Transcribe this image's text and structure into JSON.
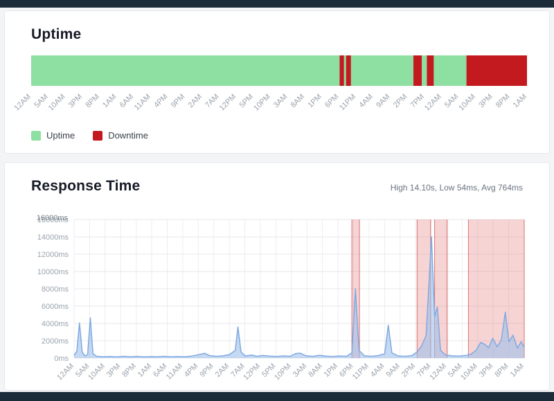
{
  "chrome": {
    "top_bar_color": "#1c2b3a",
    "bottom_bar_color": "#1c2b3a",
    "page_bg": "#f3f4f6"
  },
  "chart_data": [
    {
      "type": "bar",
      "variant": "uptime-status-strip",
      "title": "Uptime",
      "colors": {
        "up": "#8ddfa2",
        "down": "#c21a1f"
      },
      "legend": [
        {
          "label": "Uptime",
          "color": "#8ddfa2"
        },
        {
          "label": "Downtime",
          "color": "#c21a1f"
        }
      ],
      "x_ticks": [
        "12AM",
        "5AM",
        "10AM",
        "3PM",
        "8PM",
        "1AM",
        "6AM",
        "11AM",
        "4PM",
        "9PM",
        "2AM",
        "7AM",
        "12PM",
        "5PM",
        "10PM",
        "3AM",
        "8AM",
        "1PM",
        "6PM",
        "11PM",
        "4AM",
        "9AM",
        "2PM",
        "7PM",
        "12AM",
        "5AM",
        "10AM",
        "3PM",
        "8PM",
        "1AM"
      ],
      "segments": [
        {
          "state": "up",
          "from": 0.0,
          "to": 0.622
        },
        {
          "state": "down",
          "from": 0.622,
          "to": 0.631
        },
        {
          "state": "up",
          "from": 0.631,
          "to": 0.635
        },
        {
          "state": "down",
          "from": 0.635,
          "to": 0.645
        },
        {
          "state": "up",
          "from": 0.645,
          "to": 0.771
        },
        {
          "state": "down",
          "from": 0.771,
          "to": 0.788
        },
        {
          "state": "up",
          "from": 0.788,
          "to": 0.798
        },
        {
          "state": "down",
          "from": 0.798,
          "to": 0.812
        },
        {
          "state": "up",
          "from": 0.812,
          "to": 0.878
        },
        {
          "state": "down",
          "from": 0.878,
          "to": 1.0
        }
      ]
    },
    {
      "type": "area",
      "title": "Response Time",
      "subtitle": "High 14.10s, Low 54ms, Avg 764ms",
      "x_ticks": [
        "12AM",
        "5AM",
        "10AM",
        "3PM",
        "8PM",
        "1AM",
        "6AM",
        "11AM",
        "4PM",
        "9PM",
        "2AM",
        "7AM",
        "12PM",
        "5PM",
        "10PM",
        "3AM",
        "8AM",
        "1PM",
        "6PM",
        "11PM",
        "4AM",
        "9AM",
        "2PM",
        "7PM",
        "12AM",
        "5AM",
        "10AM",
        "3PM",
        "8PM",
        "1AM"
      ],
      "y_ticks": [
        "0ms",
        "2000ms",
        "4000ms",
        "6000ms",
        "8000ms",
        "10000ms",
        "12000ms",
        "14000ms",
        "16000ms"
      ],
      "y_overlap_label": "16000ms",
      "ylim": [
        0,
        16000
      ],
      "grid": true,
      "line_color": "#7fa9e2",
      "fill_color": "rgba(158,192,233,0.6)",
      "band_fill": "rgba(225,85,85,0.25)",
      "band_border": "#d87070",
      "downtime_bands": [
        [
          0.617,
          0.634
        ],
        [
          0.762,
          0.792
        ],
        [
          0.801,
          0.829
        ],
        [
          0.876,
          1.0
        ]
      ],
      "points": [
        [
          0.0,
          300
        ],
        [
          0.006,
          800
        ],
        [
          0.012,
          4050
        ],
        [
          0.018,
          700
        ],
        [
          0.024,
          250
        ],
        [
          0.03,
          400
        ],
        [
          0.036,
          4650
        ],
        [
          0.042,
          500
        ],
        [
          0.05,
          200
        ],
        [
          0.065,
          150
        ],
        [
          0.08,
          180
        ],
        [
          0.095,
          140
        ],
        [
          0.11,
          200
        ],
        [
          0.125,
          150
        ],
        [
          0.14,
          190
        ],
        [
          0.155,
          140
        ],
        [
          0.17,
          170
        ],
        [
          0.185,
          150
        ],
        [
          0.2,
          200
        ],
        [
          0.215,
          150
        ],
        [
          0.23,
          180
        ],
        [
          0.245,
          150
        ],
        [
          0.26,
          220
        ],
        [
          0.275,
          380
        ],
        [
          0.29,
          550
        ],
        [
          0.3,
          300
        ],
        [
          0.315,
          200
        ],
        [
          0.33,
          250
        ],
        [
          0.345,
          400
        ],
        [
          0.358,
          900
        ],
        [
          0.364,
          3600
        ],
        [
          0.371,
          700
        ],
        [
          0.38,
          250
        ],
        [
          0.395,
          350
        ],
        [
          0.405,
          200
        ],
        [
          0.42,
          300
        ],
        [
          0.435,
          220
        ],
        [
          0.45,
          180
        ],
        [
          0.465,
          250
        ],
        [
          0.48,
          200
        ],
        [
          0.492,
          520
        ],
        [
          0.503,
          560
        ],
        [
          0.515,
          260
        ],
        [
          0.53,
          200
        ],
        [
          0.545,
          320
        ],
        [
          0.56,
          220
        ],
        [
          0.575,
          180
        ],
        [
          0.59,
          240
        ],
        [
          0.605,
          200
        ],
        [
          0.617,
          600
        ],
        [
          0.625,
          8000
        ],
        [
          0.633,
          900
        ],
        [
          0.645,
          260
        ],
        [
          0.66,
          200
        ],
        [
          0.675,
          280
        ],
        [
          0.69,
          500
        ],
        [
          0.698,
          3800
        ],
        [
          0.706,
          600
        ],
        [
          0.72,
          250
        ],
        [
          0.735,
          200
        ],
        [
          0.75,
          280
        ],
        [
          0.762,
          700
        ],
        [
          0.772,
          1400
        ],
        [
          0.782,
          2600
        ],
        [
          0.794,
          14000
        ],
        [
          0.801,
          4800
        ],
        [
          0.807,
          5900
        ],
        [
          0.814,
          900
        ],
        [
          0.825,
          350
        ],
        [
          0.84,
          260
        ],
        [
          0.855,
          220
        ],
        [
          0.87,
          300
        ],
        [
          0.882,
          450
        ],
        [
          0.893,
          900
        ],
        [
          0.903,
          1800
        ],
        [
          0.912,
          1600
        ],
        [
          0.921,
          1200
        ],
        [
          0.93,
          2300
        ],
        [
          0.94,
          1300
        ],
        [
          0.949,
          2100
        ],
        [
          0.958,
          5300
        ],
        [
          0.966,
          1900
        ],
        [
          0.975,
          2650
        ],
        [
          0.985,
          1150
        ],
        [
          0.993,
          1900
        ],
        [
          1.0,
          1250
        ]
      ]
    }
  ]
}
